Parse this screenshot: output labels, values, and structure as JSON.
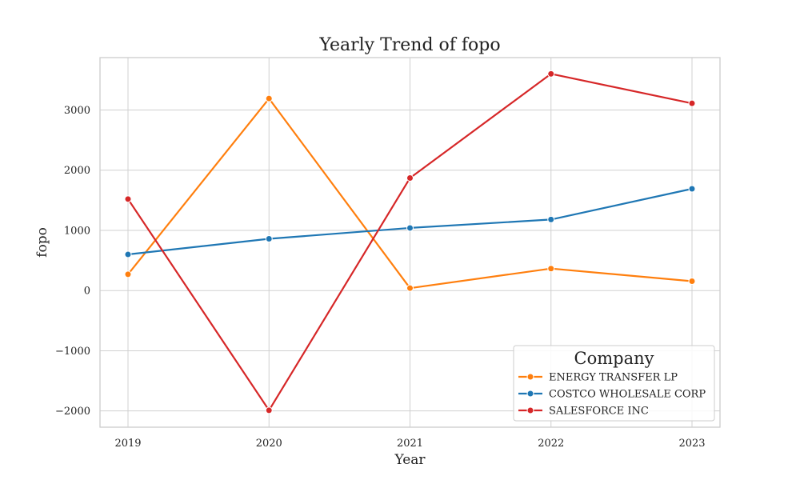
{
  "chart_data": {
    "type": "line",
    "title": "Yearly Trend of fopo",
    "xlabel": "Year",
    "ylabel": "fopo",
    "x": [
      "2019",
      "2020",
      "2021",
      "2022",
      "2023"
    ],
    "yticks": [
      -2000,
      -1000,
      0,
      1000,
      2000,
      3000
    ],
    "ytick_labels": [
      "−2000",
      "−1000",
      "0",
      "1000",
      "2000",
      "3000"
    ],
    "ylim": [
      -2270,
      3870
    ],
    "grid": true,
    "legend": {
      "title": "Company",
      "placement": "lower-right"
    },
    "series": [
      {
        "name": "ENERGY TRANSFER LP",
        "color": "#ff7f0e",
        "values": [
          270,
          3190,
          40,
          365,
          155
        ]
      },
      {
        "name": "COSTCO WHOLESALE CORP",
        "color": "#1f77b4",
        "values": [
          600,
          860,
          1040,
          1180,
          1690
        ]
      },
      {
        "name": "SALESFORCE INC",
        "color": "#d62728",
        "values": [
          1520,
          -1990,
          1870,
          3600,
          3110
        ]
      }
    ]
  }
}
